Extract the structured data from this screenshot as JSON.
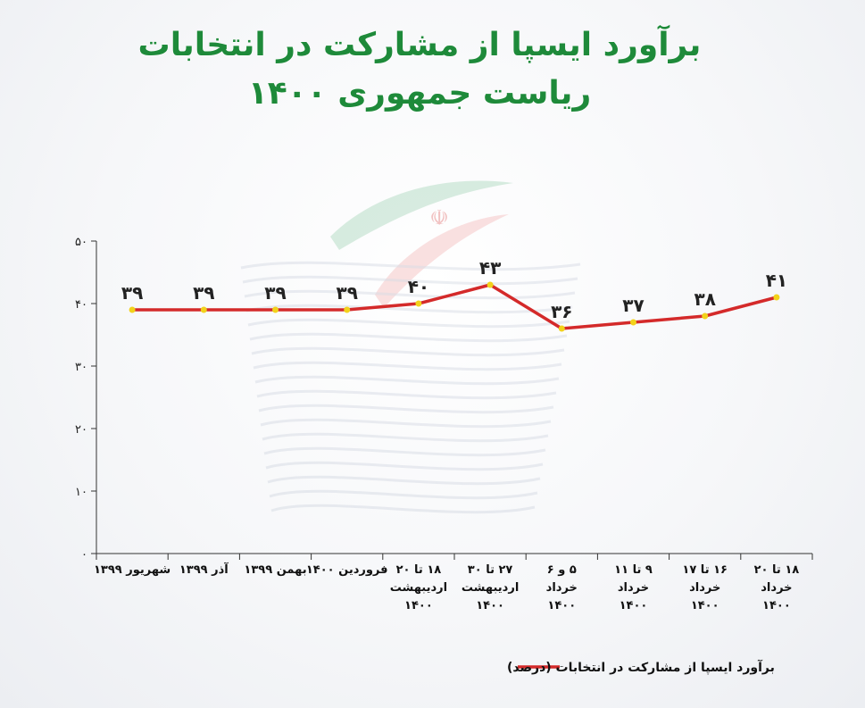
{
  "chart_data": {
    "type": "line",
    "title": [
      "برآورد ایسپا از مشارکت در انتخابات",
      "ریاست جمهوری ۱۴۰۰"
    ],
    "categories": [
      [
        "شهریور ۱۳۹۹"
      ],
      [
        "آذر ۱۳۹۹"
      ],
      [
        "بهمن ۱۳۹۹"
      ],
      [
        "فروردین ۱۴۰۰"
      ],
      [
        "۱۸ تا ۲۰",
        "اردیبهشت",
        "۱۴۰۰"
      ],
      [
        "۲۷ تا ۳۰",
        "اردیبهشت",
        "۱۴۰۰"
      ],
      [
        "۵ و ۶",
        "خرداد",
        "۱۴۰۰"
      ],
      [
        "۹ تا ۱۱",
        "خرداد",
        "۱۴۰۰"
      ],
      [
        "۱۶ تا ۱۷",
        "خرداد",
        "۱۴۰۰"
      ],
      [
        "۱۸ تا ۲۰",
        "خرداد",
        "۱۴۰۰"
      ]
    ],
    "series": [
      {
        "name": "برآورد ایسپا از مشارکت در انتخابات (درصد)",
        "values": [
          39,
          39,
          39,
          39,
          40,
          43,
          36,
          37,
          38,
          41
        ],
        "labels": [
          "۳۹",
          "۳۹",
          "۳۹",
          "۳۹",
          "۴۰",
          "۴۳",
          "۳۶",
          "۳۷",
          "۳۸",
          "۴۱"
        ],
        "color": "#d42a2a",
        "marker_color": "#f2d21b"
      }
    ],
    "ylim": [
      0,
      50
    ],
    "yticks": [
      0,
      10,
      20,
      30,
      40,
      50
    ],
    "ytick_labels": [
      "۰",
      "۱۰",
      "۲۰",
      "۳۰",
      "۴۰",
      "۵۰"
    ],
    "grid": false,
    "legend": "bottom"
  },
  "colors": {
    "title": "#1e8a3a",
    "line": "#d42a2a",
    "marker": "#f2d21b",
    "axis": "#333333"
  }
}
